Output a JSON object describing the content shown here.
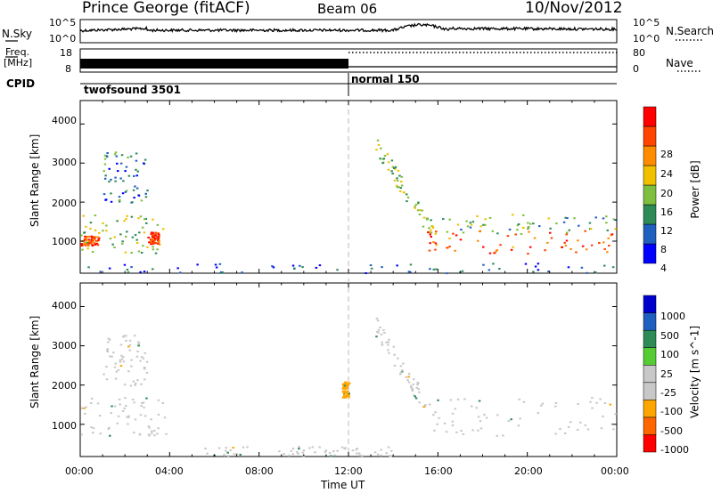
{
  "header": {
    "station": "Prince George (fitACF)",
    "beam": "Beam 06",
    "date": "10/Nov/2012"
  },
  "top_panels": {
    "nsky": {
      "label": "N.Sky",
      "left_ticks": [
        "10^5",
        "10^0"
      ],
      "right_ticks": [
        "10^5",
        "10^0"
      ],
      "right_label": "N.Search"
    },
    "freq": {
      "label_line1": "Freq.",
      "label_line2": "[MHz]",
      "left_ticks": [
        "18",
        "8"
      ],
      "right_ticks": [
        "80",
        "0"
      ],
      "right_label": "Nave"
    },
    "cpid": {
      "label": "CPID",
      "modes": [
        {
          "name": "twofsound 3501",
          "start_hour": 0,
          "end_hour": 12
        },
        {
          "name": "normal 150",
          "start_hour": 12,
          "end_hour": 24
        }
      ]
    }
  },
  "x_axis": {
    "label": "Time UT",
    "ticks": [
      "00:00",
      "04:00",
      "08:00",
      "12:00",
      "16:00",
      "20:00",
      "00:00"
    ]
  },
  "y_axis": {
    "label": "Slant Range [km]",
    "ticks": [
      "4000",
      "3000",
      "2000",
      "1000"
    ]
  },
  "colorbars": {
    "power": {
      "label": "Power [dB]",
      "ticks": [
        "28",
        "24",
        "20",
        "16",
        "12",
        "8",
        "4"
      ],
      "colors": [
        "#0000ff",
        "#1f5fbf",
        "#2e8b57",
        "#7fbf3f",
        "#f0c000",
        "#ff8c00",
        "#ff4500",
        "#ff0000"
      ]
    },
    "velocity": {
      "label": "Velocity [m s^-1]",
      "ticks": [
        "1000",
        "500",
        "100",
        "25",
        "-25",
        "-100",
        "-500",
        "-1000"
      ],
      "colors": [
        "#ff0000",
        "#ff6600",
        "#ffa500",
        "#c8c8c8",
        "#c8c8c8",
        "#55cc33",
        "#2e8b57",
        "#1f5fbf",
        "#0000cc"
      ]
    }
  },
  "chart_data": {
    "type": "heatmap",
    "x_range_hours": [
      0,
      24
    ],
    "y_range_km": [
      180,
      4600
    ],
    "mode_change_hour": 12,
    "power_scatter_regions": [
      {
        "t0": 0.0,
        "t1": 3.8,
        "r0": 700,
        "r1": 1700,
        "value_db": 14
      },
      {
        "t0": 0.0,
        "t1": 0.8,
        "r0": 900,
        "r1": 1150,
        "value_db": 26
      },
      {
        "t0": 3.0,
        "t1": 3.5,
        "r0": 950,
        "r1": 1250,
        "value_db": 27
      },
      {
        "t0": 1.0,
        "t1": 3.0,
        "r0": 2000,
        "r1": 3300,
        "value_db": 8
      },
      {
        "t0": 13.2,
        "t1": 16.0,
        "r0": 900,
        "r1": 3500,
        "value_db": 14
      },
      {
        "t0": 15.5,
        "t1": 24.0,
        "r0": 700,
        "r1": 1300,
        "value_db": 25
      },
      {
        "t0": 15.5,
        "t1": 24.0,
        "r0": 1200,
        "r1": 1700,
        "value_db": 12
      },
      {
        "t0": 0.0,
        "t1": 24.0,
        "r0": 200,
        "r1": 450,
        "value_db": 6
      }
    ],
    "velocity_scatter_regions": [
      {
        "t0": 0.0,
        "t1": 3.8,
        "r0": 700,
        "r1": 1700,
        "value_ms": 0
      },
      {
        "t0": 1.0,
        "t1": 3.0,
        "r0": 2000,
        "r1": 3300,
        "value_ms": 0
      },
      {
        "t0": 13.2,
        "t1": 16.0,
        "r0": 900,
        "r1": 3500,
        "value_ms": 0
      },
      {
        "t0": 15.5,
        "t1": 24.0,
        "r0": 700,
        "r1": 1700,
        "value_ms": 0
      },
      {
        "t0": 5.0,
        "t1": 14.0,
        "r0": 200,
        "r1": 450,
        "value_ms": -80
      },
      {
        "t0": 11.7,
        "t1": 12.0,
        "r0": 1700,
        "r1": 2100,
        "value_ms": -150
      }
    ]
  }
}
